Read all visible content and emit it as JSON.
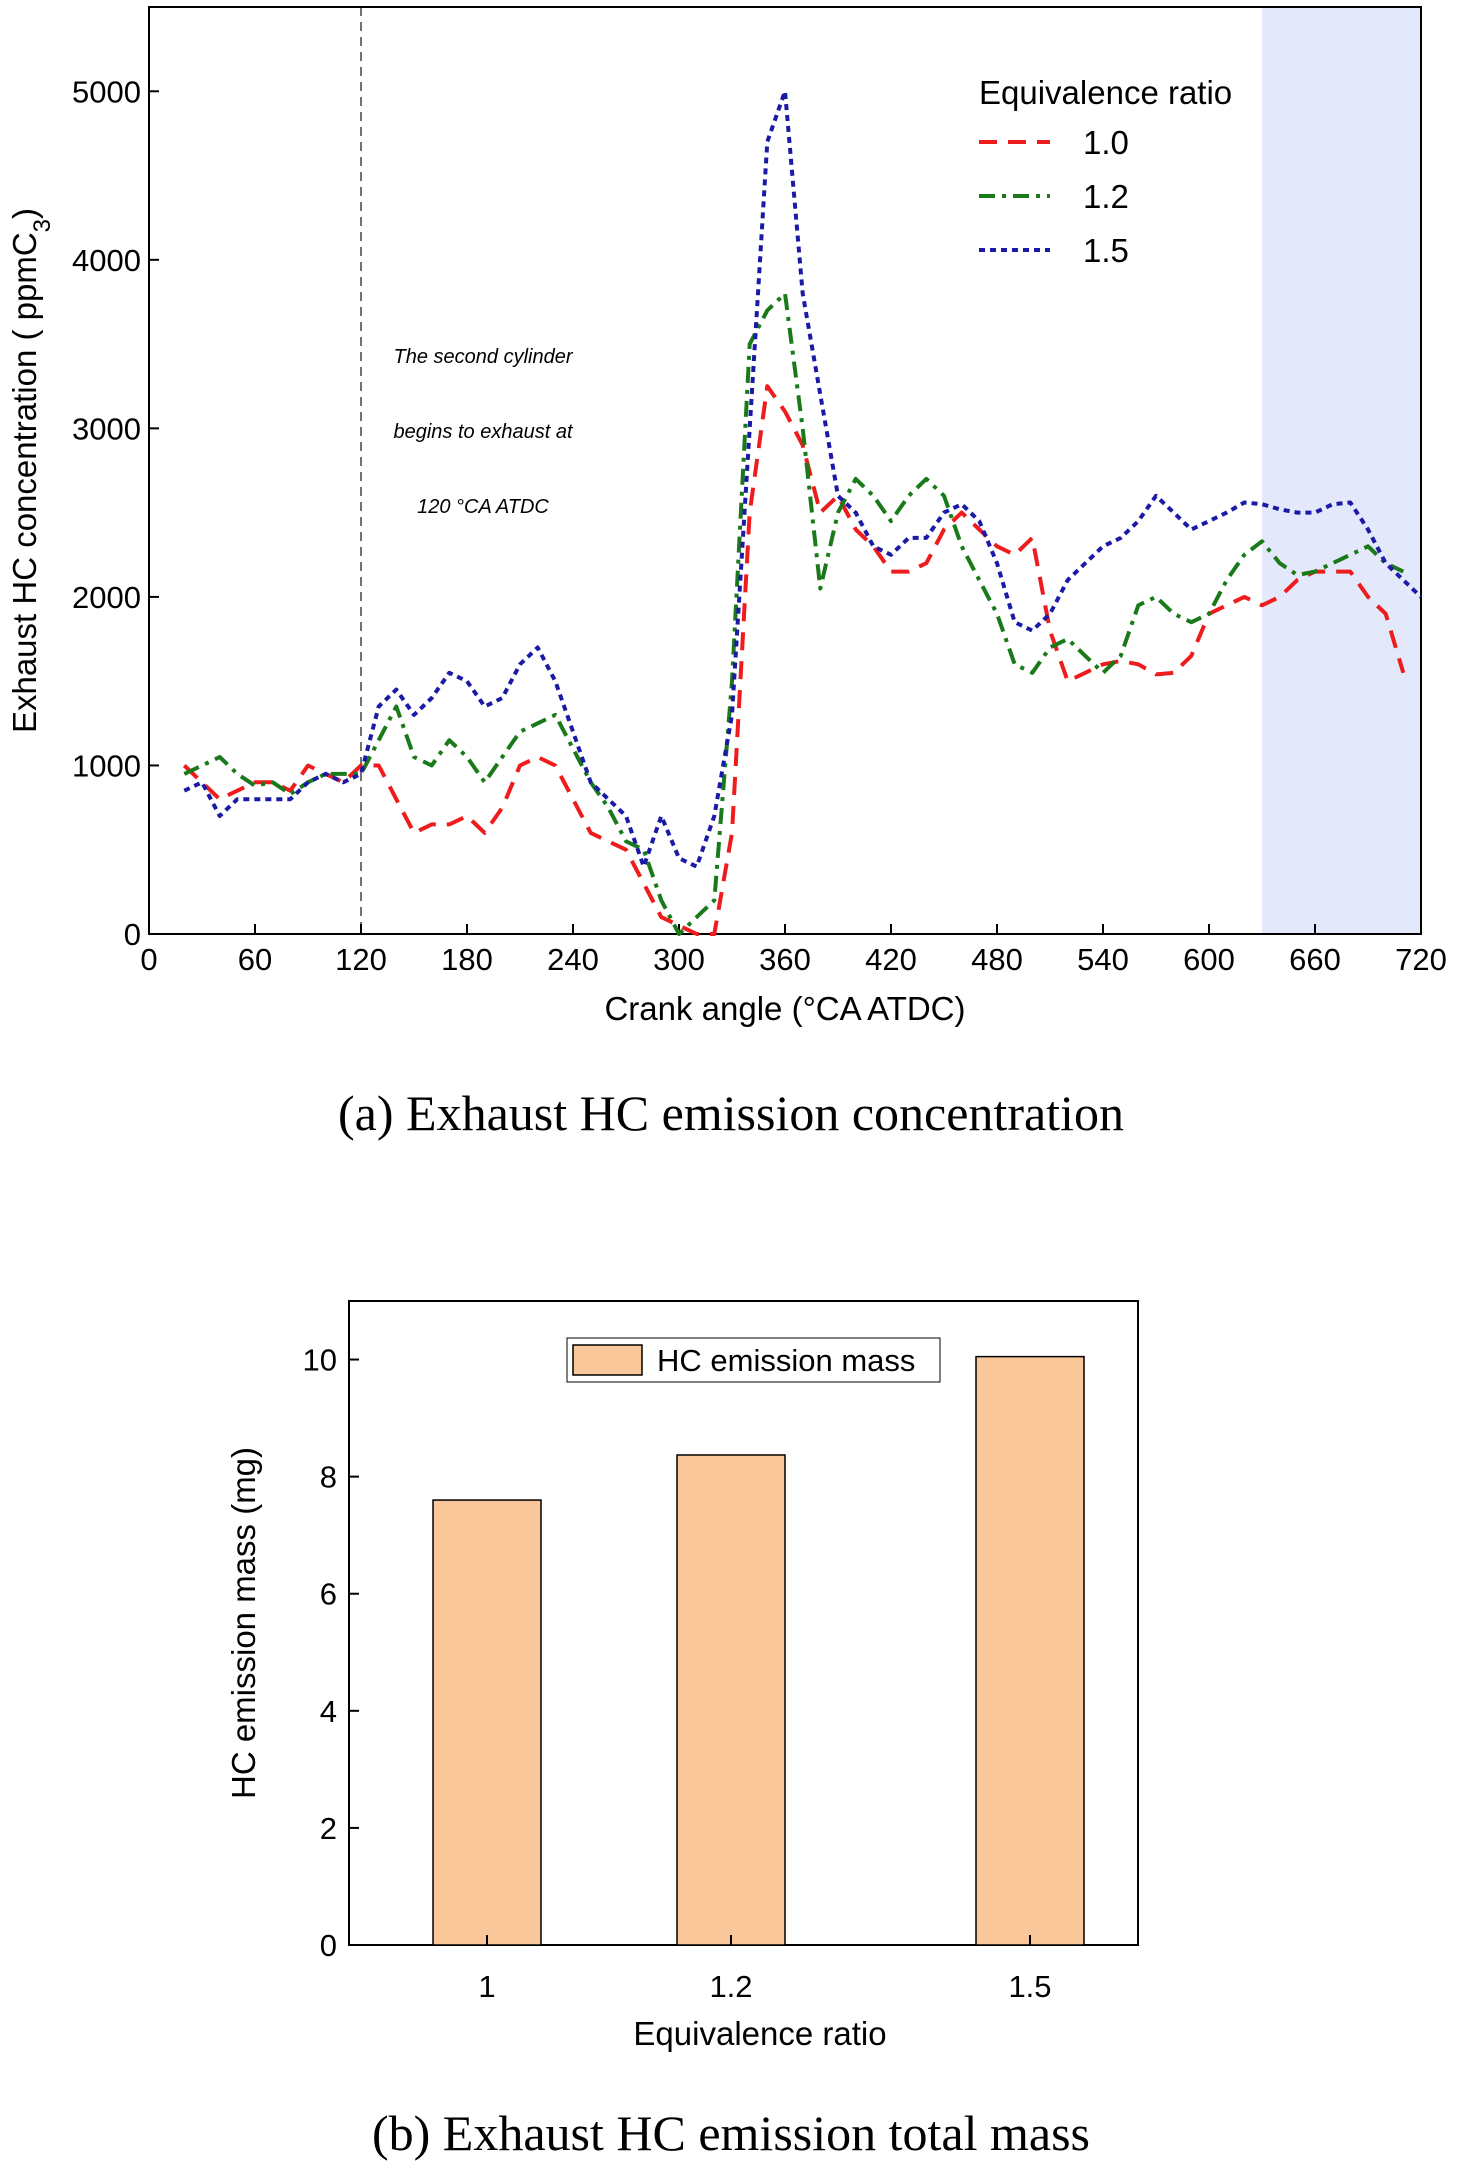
{
  "chart_data": [
    {
      "type": "line",
      "caption": "(a) Exhaust HC emission concentration",
      "xlabel": "Crank angle (°CA ATDC)",
      "ylabel_main": "Exhaust HC concentration ( ppmC",
      "ylabel_sub": "3",
      "ylabel_end": ")",
      "legend_title": "Equivalence ratio",
      "annotations": [
        "The second cylinder",
        "begins to exhaust at",
        "120 °CA ATDC"
      ],
      "marker_x": 120,
      "shaded_xrange": [
        630,
        720
      ],
      "xlim": [
        0,
        720
      ],
      "xticks": [
        0,
        60,
        120,
        180,
        240,
        300,
        360,
        420,
        480,
        540,
        600,
        660,
        720
      ],
      "ylim": [
        0,
        5500
      ],
      "yticks": [
        0,
        1000,
        2000,
        3000,
        4000,
        5000
      ],
      "x": [
        20,
        30,
        40,
        50,
        60,
        70,
        80,
        90,
        100,
        110,
        120,
        130,
        140,
        150,
        160,
        170,
        180,
        190,
        200,
        210,
        220,
        230,
        240,
        250,
        260,
        270,
        280,
        290,
        300,
        310,
        320,
        330,
        340,
        350,
        360,
        370,
        380,
        390,
        400,
        410,
        420,
        430,
        440,
        450,
        460,
        470,
        480,
        490,
        500,
        510,
        520,
        530,
        540,
        550,
        560,
        570,
        580,
        590,
        600,
        610,
        620,
        630,
        640,
        650,
        660,
        670,
        680,
        690,
        700,
        710,
        720
      ],
      "series": [
        {
          "name": "1.0",
          "color": "#ee1c1c",
          "dash": "18,11",
          "values": [
            1000,
            900,
            800,
            850,
            900,
            900,
            850,
            1000,
            950,
            900,
            1000,
            1000,
            800,
            600,
            650,
            650,
            700,
            600,
            750,
            1000,
            1050,
            1000,
            800,
            600,
            550,
            500,
            300,
            100,
            50,
            0,
            0,
            600,
            2500,
            3250,
            3100,
            2900,
            2500,
            2600,
            2400,
            2300,
            2150,
            2150,
            2200,
            2400,
            2500,
            2400,
            2300,
            2250,
            2350,
            1800,
            1500,
            1550,
            1600,
            1620,
            1600,
            1540,
            1550,
            1650,
            1900,
            1950,
            2000,
            1950,
            2000,
            2100,
            2150,
            2150,
            2150,
            2000,
            1900,
            1550,
            null
          ]
        },
        {
          "name": "1.2",
          "color": "#1a7a1a",
          "dash": "16,7,4,7",
          "values": [
            950,
            1000,
            1050,
            950,
            880,
            900,
            830,
            900,
            950,
            950,
            950,
            1150,
            1350,
            1050,
            1000,
            1150,
            1050,
            900,
            1050,
            1200,
            1250,
            1300,
            1100,
            900,
            750,
            550,
            500,
            200,
            0,
            100,
            200,
            1500,
            3500,
            3700,
            3800,
            3000,
            2050,
            2500,
            2700,
            2600,
            2450,
            2600,
            2700,
            2600,
            2300,
            2100,
            1900,
            1600,
            1550,
            1700,
            1750,
            1650,
            1550,
            1650,
            1950,
            2000,
            1900,
            1850,
            1900,
            2100,
            2250,
            2330,
            2200,
            2130,
            2150,
            2200,
            2250,
            2300,
            2200,
            2150,
            null
          ]
        },
        {
          "name": "1.5",
          "color": "#1a1aa6",
          "dash": "6,5",
          "values": [
            850,
            900,
            700,
            800,
            800,
            800,
            800,
            900,
            950,
            900,
            950,
            1350,
            1450,
            1300,
            1400,
            1550,
            1500,
            1350,
            1400,
            1600,
            1700,
            1500,
            1200,
            900,
            800,
            700,
            400,
            700,
            450,
            400,
            700,
            1300,
            3000,
            4700,
            5000,
            3800,
            3200,
            2600,
            2500,
            2300,
            2250,
            2350,
            2350,
            2500,
            2550,
            2450,
            2200,
            1850,
            1800,
            1900,
            2100,
            2200,
            2300,
            2350,
            2450,
            2600,
            2500,
            2400,
            2450,
            2500,
            2560,
            2550,
            2520,
            2500,
            2500,
            2550,
            2560,
            2400,
            2200,
            2100,
            2000
          ]
        }
      ]
    },
    {
      "type": "bar",
      "caption": "(b) Exhaust HC emission total mass",
      "xlabel": "Equivalence  ratio",
      "ylabel": "HC emission mass (mg)",
      "categories": [
        "1",
        "1.2",
        "1.5"
      ],
      "series": [
        {
          "name": "HC emission mass",
          "color": "#f9c79a",
          "values": [
            7.6,
            8.37,
            10.05
          ]
        }
      ],
      "ylim": [
        0,
        11
      ],
      "yticks": [
        0,
        2,
        4,
        6,
        8,
        10
      ]
    }
  ]
}
